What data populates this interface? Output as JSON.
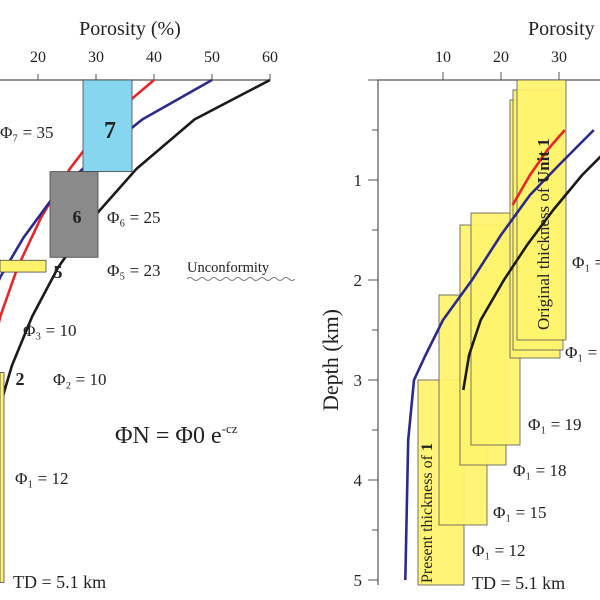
{
  "chart_data": [
    {
      "type": "line",
      "panel": "left",
      "xlabel": "Porosity (%)",
      "x_ticks": [
        "20",
        "30",
        "40",
        "50",
        "60"
      ],
      "x_range": [
        10,
        60
      ],
      "y_unit": "km",
      "y_range": [
        0,
        5.1
      ],
      "series": [
        {
          "color": "#e8262a",
          "points": [
            [
              40,
              0
            ],
            [
              32,
              0.4
            ],
            [
              25.5,
              0.9
            ],
            [
              20.5,
              1.4
            ],
            [
              16.5,
              1.9
            ],
            [
              13.5,
              2.4
            ],
            [
              11.5,
              2.9
            ],
            [
              10.5,
              3.4
            ],
            [
              10.2,
              3.8
            ]
          ]
        },
        {
          "color": "#2b2a8c",
          "points": [
            [
              50,
              0
            ],
            [
              38,
              0.4
            ],
            [
              29.5,
              0.8
            ],
            [
              22.5,
              1.2
            ],
            [
              17.5,
              1.6
            ],
            [
              13.5,
              2.0
            ],
            [
              10.5,
              2.4
            ],
            [
              9,
              2.8
            ],
            [
              8.5,
              3.0
            ]
          ]
        },
        {
          "color": "#1a1a1a",
          "points": [
            [
              60,
              0
            ],
            [
              47,
              0.4
            ],
            [
              37,
              0.9
            ],
            [
              29.5,
              1.4
            ],
            [
              23.5,
              1.9
            ],
            [
              19,
              2.4
            ],
            [
              15.5,
              2.9
            ],
            [
              13,
              3.4
            ],
            [
              11.5,
              3.8
            ]
          ]
        }
      ],
      "units": [
        {
          "label": "7",
          "phi_label": "Φ₇ = 35",
          "porosity": 35,
          "depth_top": 0,
          "depth_bottom": 0.93,
          "color": "#87d6f0"
        },
        {
          "label": "6",
          "phi_label": "Φ₆ = 25",
          "porosity": 25,
          "depth_top": 0.93,
          "depth_bottom": 1.8,
          "color": "#8a8a8a"
        },
        {
          "label": "5",
          "phi_label": "Φ₅ = 23",
          "porosity": 23,
          "depth_top": 1.83,
          "depth_bottom": 1.95,
          "color": "#fff36e"
        },
        {
          "label": "",
          "phi_label": "Φ₃ = 10",
          "porosity": 10
        },
        {
          "label": "2",
          "phi_label": "Φ₂ = 10",
          "porosity": 10
        },
        {
          "label": "",
          "phi_label": "Φ₁ = 12",
          "porosity": 12,
          "depth_top": 2.97,
          "depth_bottom": 5.1,
          "color": "#fff36e"
        }
      ],
      "annotations": {
        "unconformity": "Unconformity",
        "formula_main": "ΦN = Φ0 e",
        "formula_exp": "-cz",
        "td": "TD = 5.1 km"
      }
    },
    {
      "type": "line",
      "panel": "right",
      "xlabel": "Porosity",
      "ylabel": "Depth (km)",
      "x_ticks": [
        "10",
        "20",
        "30"
      ],
      "y_ticks": [
        "1",
        "2",
        "3",
        "4",
        "5"
      ],
      "x_range": [
        0,
        40
      ],
      "y_range": [
        0,
        5.1
      ],
      "series": [
        {
          "color": "#e8262a",
          "points": [
            [
              31,
              0.5
            ],
            [
              28,
              0.7
            ],
            [
              25,
              0.95
            ],
            [
              22,
              1.25
            ]
          ]
        },
        {
          "color": "#2b2a8c",
          "points": [
            [
              36,
              0.5
            ],
            [
              30,
              0.85
            ],
            [
              25,
              1.15
            ],
            [
              20,
              1.55
            ],
            [
              15,
              2.0
            ],
            [
              10,
              2.4
            ],
            [
              7,
              2.75
            ],
            [
              5,
              3.0
            ],
            [
              4,
              3.6
            ],
            [
              3.5,
              5.0
            ]
          ]
        },
        {
          "color": "#1a1a1a",
          "points": [
            [
              40,
              0.6
            ],
            [
              34,
              0.95
            ],
            [
              29,
              1.3
            ],
            [
              24.5,
              1.65
            ],
            [
              20.5,
              2.0
            ],
            [
              16.5,
              2.4
            ],
            [
              14.5,
              2.75
            ],
            [
              13.5,
              3.1
            ]
          ]
        }
      ],
      "boxes": [
        {
          "phi_label": "Φ₁ = 12",
          "porosity": 12,
          "depth_top": 3.0,
          "depth_bottom": 5.05
        },
        {
          "phi_label": "Φ₁ = 15",
          "porosity": 15,
          "depth_top": 2.15,
          "depth_bottom": 4.45
        },
        {
          "phi_label": "Φ₁ = 18",
          "porosity": 18,
          "depth_top": 1.45,
          "depth_bottom": 3.85
        },
        {
          "phi_label": "Φ₁ = 19",
          "porosity": 19,
          "depth_top": 1.33,
          "depth_bottom": 3.65
        },
        {
          "phi_label": "Φ₁ =",
          "porosity": 24,
          "depth_top": 0.2,
          "depth_bottom": 2.78
        },
        {
          "phi_label": "Φ₁ =",
          "porosity": 24.5,
          "depth_top": 0.1,
          "depth_bottom": 2.7
        },
        {
          "phi_label": "",
          "porosity": 25,
          "depth_top": 0,
          "depth_bottom": 2.6
        }
      ],
      "annotations": {
        "original_prefix": "Original thickness of ",
        "original_bold": "Unit 1",
        "present_prefix": "Present thickness of ",
        "present_bold": "1",
        "td": "TD = 5.1 km"
      }
    }
  ]
}
